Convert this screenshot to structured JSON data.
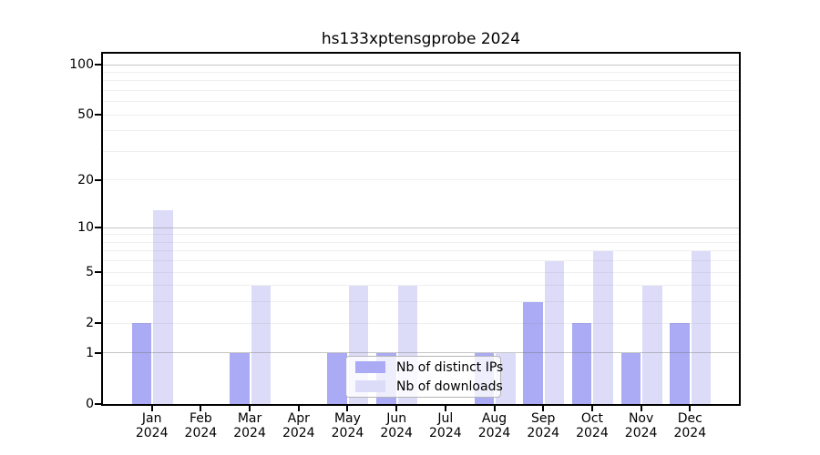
{
  "chart_data": {
    "type": "bar",
    "title": "hs133xptensgprobe 2024",
    "categories": [
      "Jan",
      "Feb",
      "Mar",
      "Apr",
      "May",
      "Jun",
      "Jul",
      "Aug",
      "Sep",
      "Oct",
      "Nov",
      "Dec"
    ],
    "category_year": "2024",
    "x_tick_label_format": "month newline year",
    "series": [
      {
        "name": "Nb of distinct IPs",
        "color": "#aaaaf5",
        "values": [
          2,
          0,
          1,
          0,
          1,
          1,
          0,
          1,
          3,
          2,
          1,
          2
        ]
      },
      {
        "name": "Nb of downloads",
        "color": "#dcdcf9",
        "values": [
          13,
          0,
          4,
          0,
          4,
          4,
          0,
          1,
          6,
          7,
          4,
          7
        ]
      }
    ],
    "xlabel": "",
    "ylabel": "",
    "y_scale": "log1p",
    "ylim": [
      0,
      116
    ],
    "y_ticks": [
      0,
      1,
      2,
      5,
      10,
      20,
      50,
      100
    ],
    "y_gridlines_major": [
      1,
      10,
      100
    ],
    "y_gridlines_minor": [
      2,
      3,
      4,
      5,
      6,
      7,
      8,
      9,
      20,
      30,
      40,
      50,
      60,
      70,
      80,
      90
    ],
    "grid": "on",
    "legend_position": "inside lower center"
  },
  "colors": {
    "background": "#ffffff",
    "spine": "#000000",
    "major_grid": "#c6c6c6",
    "minor_grid": "#eeeeee",
    "legend_border": "#b5b5b5",
    "distinct_ips_bar": "#aaaaf5",
    "downloads_bar": "#dcdcf9"
  }
}
